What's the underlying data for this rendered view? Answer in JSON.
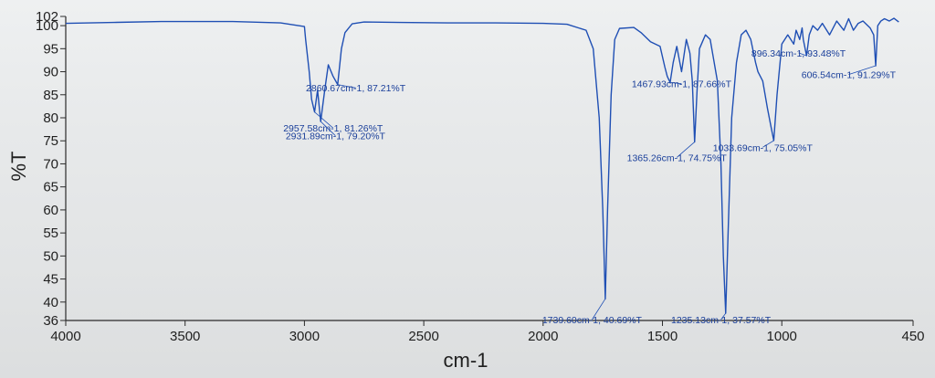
{
  "chart_data": {
    "type": "line",
    "title": "",
    "xlabel": "cm-1",
    "ylabel": "%T",
    "xlim": [
      4000,
      450
    ],
    "ylim": [
      36,
      102
    ],
    "x_reversed": true,
    "grid": false,
    "legend": "none",
    "line_color": "#1f4fb4",
    "x_ticks": [
      "4000",
      "3500",
      "3000",
      "2500",
      "2000",
      "1500",
      "1000",
      "450"
    ],
    "y_ticks": [
      "102",
      "100",
      "95",
      "90",
      "85",
      "80",
      "75",
      "70",
      "65",
      "60",
      "55",
      "50",
      "45",
      "40",
      "36"
    ],
    "series": [
      {
        "x": [
          4000,
          3800,
          3600,
          3300,
          3100,
          3000,
          2995,
          2980,
          2970,
          2957.58,
          2945,
          2931.89,
          2915,
          2900,
          2880,
          2860.67,
          2845,
          2830,
          2800,
          2750,
          2600,
          2400,
          2200,
          2000,
          1900,
          1820,
          1790,
          1765,
          1750,
          1739.6,
          1730,
          1715,
          1700,
          1680,
          1620,
          1590,
          1550,
          1510,
          1490,
          1480,
          1467.93,
          1455,
          1440,
          1420,
          1400,
          1385,
          1375,
          1365.26,
          1355,
          1345,
          1320,
          1300,
          1270,
          1255,
          1245,
          1235.13,
          1225,
          1210,
          1190,
          1170,
          1150,
          1130,
          1110,
          1100,
          1080,
          1060,
          1045,
          1033.69,
          1020,
          1000,
          975,
          950,
          940,
          925,
          915,
          910,
          896.34,
          885,
          870,
          850,
          830,
          800,
          770,
          740,
          720,
          700,
          680,
          660,
          630,
          615,
          606.54,
          598,
          585,
          570,
          550,
          530,
          510
        ],
        "y": [
          100.5,
          100.7,
          100.9,
          100.9,
          100.6,
          99.8,
          97.0,
          90.0,
          84.0,
          81.26,
          86.0,
          79.2,
          86.0,
          91.5,
          89.0,
          87.21,
          95.0,
          98.5,
          100.4,
          100.8,
          100.7,
          100.6,
          100.6,
          100.5,
          100.3,
          99.0,
          95.0,
          80.0,
          60.0,
          40.69,
          60.0,
          85.0,
          97.0,
          99.4,
          99.6,
          98.5,
          96.5,
          95.5,
          91.0,
          89.0,
          87.66,
          92.0,
          95.5,
          90.0,
          97.0,
          94.0,
          88.0,
          74.75,
          86.0,
          95.0,
          98.0,
          97.0,
          88.0,
          70.0,
          50.0,
          37.57,
          55.0,
          80.0,
          92.0,
          98.0,
          99.0,
          97.0,
          92.0,
          90.0,
          88.0,
          82.0,
          78.0,
          75.05,
          85.0,
          96.0,
          98.0,
          96.0,
          99.0,
          97.0,
          99.5,
          97.0,
          93.48,
          98.0,
          100.0,
          99.0,
          100.5,
          98.0,
          101.0,
          99.0,
          101.5,
          99.0,
          100.5,
          101.0,
          99.5,
          98.0,
          91.29,
          100.0,
          101.0,
          101.5,
          101.0,
          101.6,
          100.8
        ]
      }
    ],
    "annotations": [
      {
        "text": "2860.67cm-1, 87.21%T",
        "x": 2860.67,
        "y": 87.21,
        "lx": 2785,
        "ly": 85.7,
        "anchor": "middle"
      },
      {
        "text": "2957.58cm-1, 81.26%T",
        "x": 2957.58,
        "y": 81.26,
        "lx": 2880,
        "ly": 77.0,
        "anchor": "middle"
      },
      {
        "text": "2931.89cm-1, 79.20%T",
        "x": 2931.89,
        "y": 79.2,
        "lx": 2870,
        "ly": 75.3,
        "anchor": "middle"
      },
      {
        "text": "1467.93cm-1, 87.66%T",
        "x": 1467.93,
        "y": 87.66,
        "lx": 1420,
        "ly": 86.6,
        "anchor": "middle"
      },
      {
        "text": "1365.26cm-1, 74.75%T",
        "x": 1365.26,
        "y": 74.75,
        "lx": 1440,
        "ly": 70.6,
        "anchor": "middle"
      },
      {
        "text": "1033.69cm-1, 75.05%T",
        "x": 1033.69,
        "y": 75.05,
        "lx": 1080,
        "ly": 72.8,
        "anchor": "middle"
      },
      {
        "text": "896.34cm-1, 93.48%T",
        "x": 896.34,
        "y": 93.48,
        "lx": 930,
        "ly": 93.3,
        "anchor": "middle"
      },
      {
        "text": "606.54cm-1, 91.29%T",
        "x": 606.54,
        "y": 91.29,
        "lx": 720,
        "ly": 88.6,
        "anchor": "middle"
      },
      {
        "text": "1739.60cm-1, 40.69%T",
        "x": 1739.6,
        "y": 40.69,
        "lx": 1795,
        "ly": 35.4,
        "anchor": "middle"
      },
      {
        "text": "1235.13cm-1, 37.57%T",
        "x": 1235.13,
        "y": 37.57,
        "lx": 1255,
        "ly": 35.4,
        "anchor": "middle"
      }
    ]
  }
}
